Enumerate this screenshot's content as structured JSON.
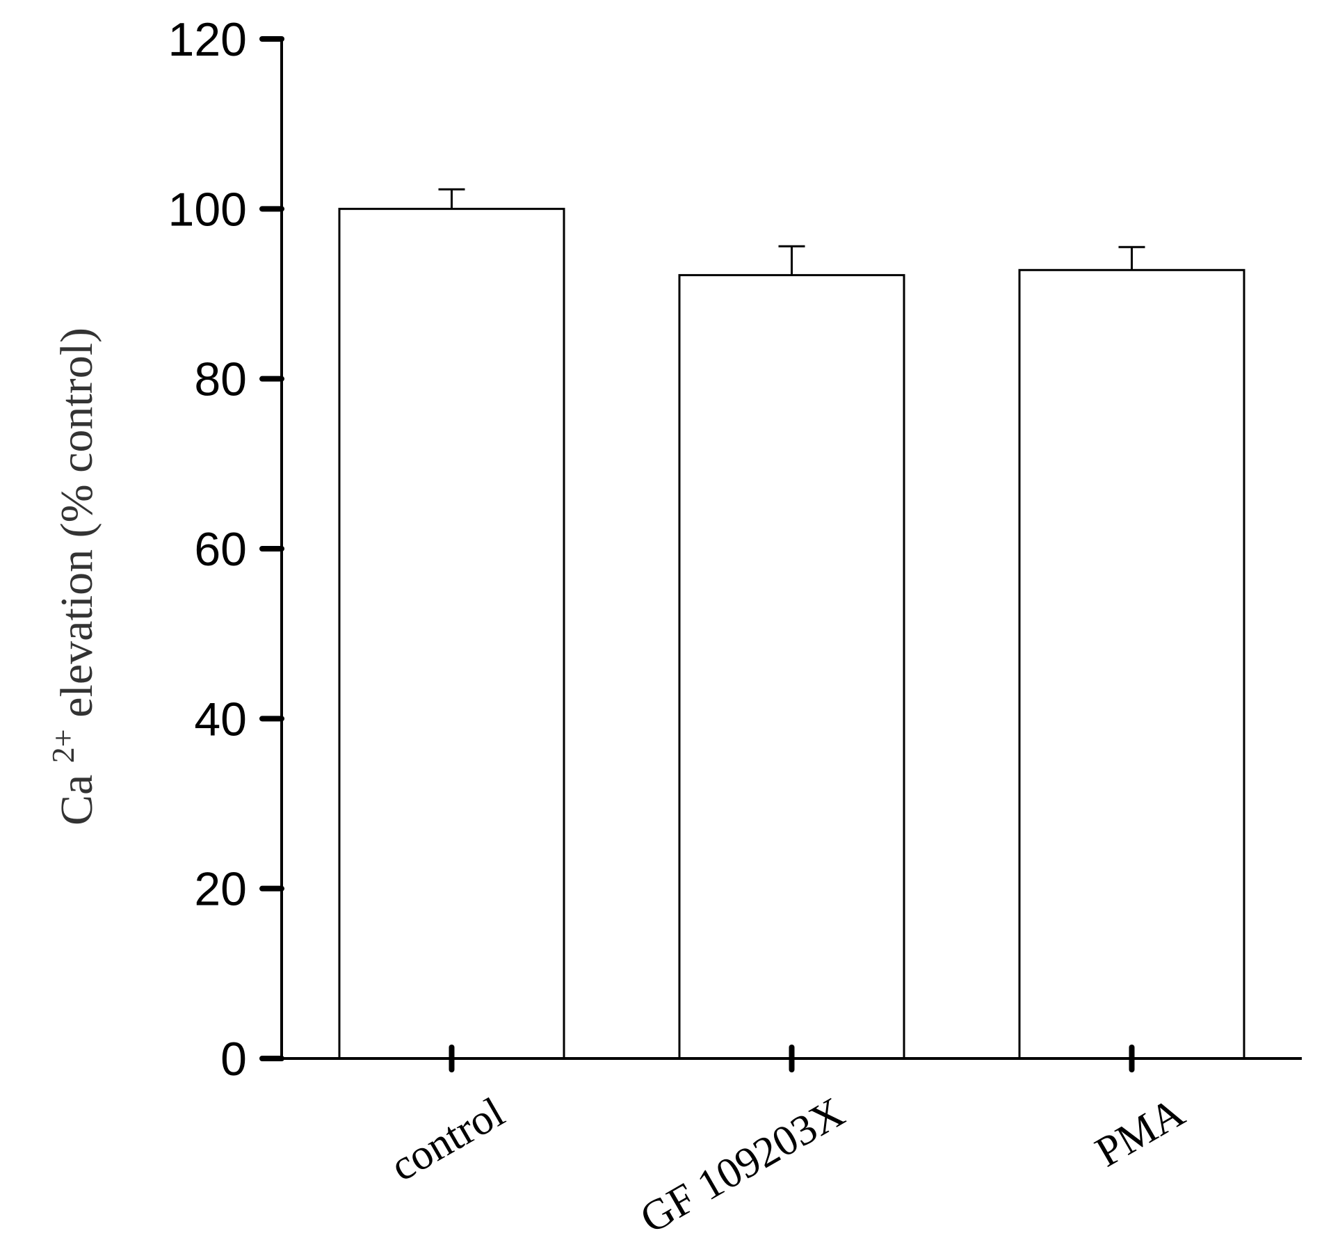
{
  "chart_data": {
    "type": "bar",
    "categories": [
      "control",
      "GF 109203X",
      "PMA"
    ],
    "series": [
      {
        "values": [
          100,
          92.2,
          92.8
        ],
        "error": [
          2.3,
          3.4,
          2.7
        ]
      }
    ],
    "ylabel": {
      "base": "Ca",
      "superscript": "2+",
      "rest": " elevation (% control)"
    },
    "xlabel": "",
    "title": "",
    "ylim": [
      0,
      120
    ],
    "yticks": [
      0,
      20,
      40,
      60,
      80,
      100,
      120
    ],
    "grid": false,
    "legend": "none",
    "bar_fill": "#ffffff",
    "bar_stroke": "#000000"
  }
}
